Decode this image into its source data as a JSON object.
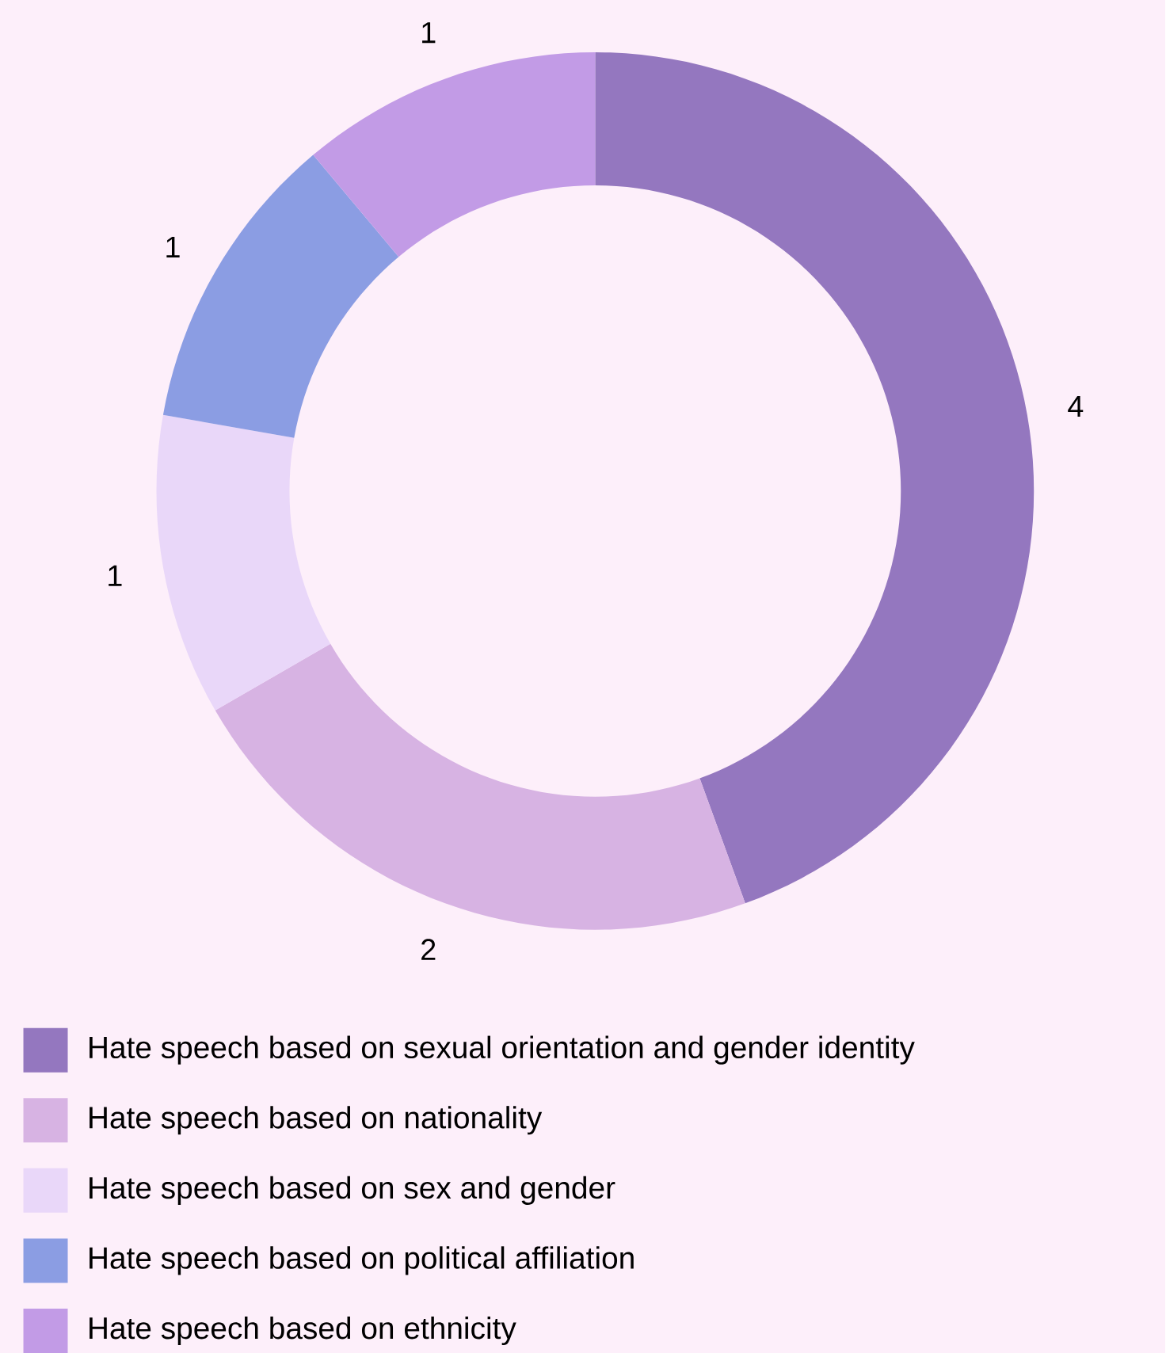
{
  "chart_data": {
    "type": "donut",
    "categories": [
      "Hate speech based on sexual orientation and gender identity",
      "Hate speech based on nationality",
      "Hate speech based on sex and gender",
      "Hate speech based on political affiliation",
      "Hate speech based on ethnicity"
    ],
    "values": [
      4,
      2,
      1,
      1,
      1
    ],
    "colors": [
      "#9477bf",
      "#d7b3e3",
      "#e9d7f9",
      "#8b9de3",
      "#c29be6"
    ],
    "data_labels": true,
    "legend": "bottom"
  }
}
